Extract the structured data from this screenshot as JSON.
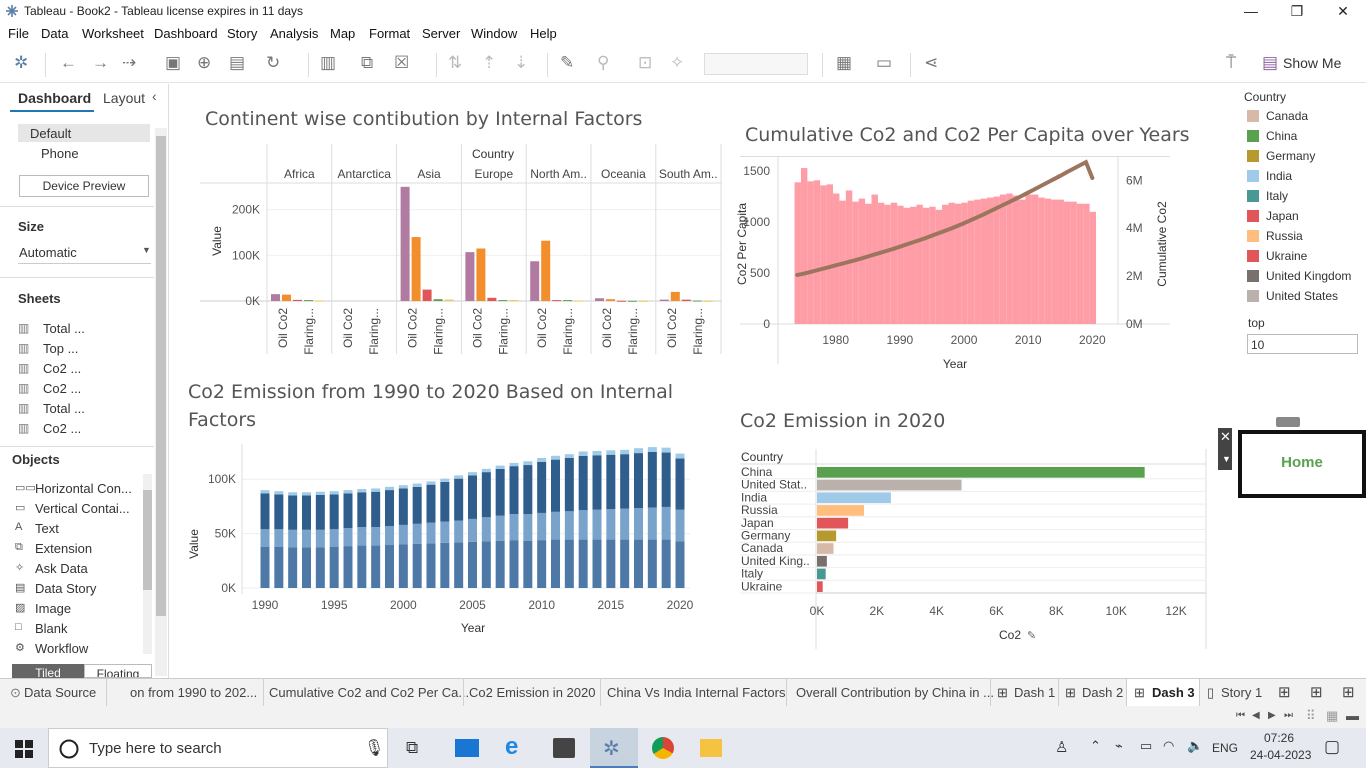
{
  "window": {
    "title": "Tableau - Book2 - Tableau license expires in 11 days"
  },
  "menu": [
    "File",
    "Data",
    "Worksheet",
    "Dashboard",
    "Story",
    "Analysis",
    "Map",
    "Format",
    "Server",
    "Window",
    "Help"
  ],
  "toolbar": {
    "show_me": "Show Me"
  },
  "left": {
    "tab_dashboard": "Dashboard",
    "tab_layout": "Layout",
    "device_default": "Default",
    "device_phone": "Phone",
    "device_preview": "Device Preview",
    "size_heading": "Size",
    "size_value": "Automatic",
    "sheets_heading": "Sheets",
    "sheets": [
      "Total ...",
      "Top ...",
      "Co2 ...",
      "Co2 ...",
      "Total ...",
      "Co2 ..."
    ],
    "objects_heading": "Objects",
    "objects": [
      "Horizontal Con...",
      "Vertical Contai...",
      "Text",
      "Extension",
      "Ask Data",
      "Data Story",
      "Image",
      "Blank",
      "Workflow"
    ],
    "tiled": "Tiled",
    "floating": "Floating"
  },
  "legend": {
    "title": "Country",
    "items": [
      {
        "name": "Canada",
        "color": "#d6b9a8"
      },
      {
        "name": "China",
        "color": "#59a14f"
      },
      {
        "name": "Germany",
        "color": "#b69a2e"
      },
      {
        "name": "India",
        "color": "#a0cbe8"
      },
      {
        "name": "Italy",
        "color": "#499894"
      },
      {
        "name": "Japan",
        "color": "#e15759"
      },
      {
        "name": "Russia",
        "color": "#ffbe7d"
      },
      {
        "name": "Ukraine",
        "color": "#e15759"
      },
      {
        "name": "United Kingdom",
        "color": "#79706e"
      },
      {
        "name": "United States",
        "color": "#bab0ac"
      }
    ],
    "top_label": "top",
    "top_value": "10"
  },
  "home_button": "Home",
  "chart1": {
    "title": "Continent wise contibution by Internal Factors",
    "header": "Country",
    "ylabel": "Value"
  },
  "chart2": {
    "title": "Cumulative Co2 and Co2 Per Capita over Years",
    "xlabel": "Year",
    "ylabel_left": "Co2 Per Capita",
    "ylabel_right": "Cumulative Co2"
  },
  "chart3": {
    "title_line1": "Co2 Emission from 1990 to 2020 Based on Internal",
    "title_line2": "Factors",
    "xlabel": "Year",
    "ylabel": "Value"
  },
  "chart4": {
    "title": "Co2 Emission in 2020",
    "header": "Country",
    "xlabel": "Co2"
  },
  "chart_data": [
    {
      "type": "bar",
      "title": "Continent wise contibution by Internal Factors",
      "ylabel": "Value",
      "ylim": [
        0,
        300000
      ],
      "yticks": [
        "0K",
        "100K",
        "200K"
      ],
      "columns": [
        "Africa",
        "Antarctica",
        "Asia",
        "Europe",
        "North Am..",
        "Oceania",
        "South Am.."
      ],
      "subcategories": [
        "Oil Co2",
        "Flaring..."
      ],
      "bars": [
        {
          "column": "Africa",
          "values": [
            {
              "v": 15000,
              "color": "#b07aa1"
            },
            {
              "v": 14000,
              "color": "#f28e2b"
            },
            {
              "v": 2500,
              "color": "#e15759"
            },
            {
              "v": 2000,
              "color": "#59a14f"
            },
            {
              "v": 1000,
              "color": "#edc948"
            }
          ]
        },
        {
          "column": "Antarctica",
          "values": []
        },
        {
          "column": "Asia",
          "values": [
            {
              "v": 250000,
              "color": "#b07aa1"
            },
            {
              "v": 140000,
              "color": "#f28e2b"
            },
            {
              "v": 25000,
              "color": "#e15759"
            },
            {
              "v": 4000,
              "color": "#59a14f"
            },
            {
              "v": 3000,
              "color": "#edc948"
            }
          ]
        },
        {
          "column": "Europe",
          "values": [
            {
              "v": 107000,
              "color": "#b07aa1"
            },
            {
              "v": 115000,
              "color": "#f28e2b"
            },
            {
              "v": 7000,
              "color": "#e15759"
            },
            {
              "v": 2000,
              "color": "#59a14f"
            },
            {
              "v": 2000,
              "color": "#edc948"
            }
          ]
        },
        {
          "column": "North Am..",
          "values": [
            {
              "v": 87000,
              "color": "#b07aa1"
            },
            {
              "v": 132000,
              "color": "#f28e2b"
            },
            {
              "v": 2000,
              "color": "#e15759"
            },
            {
              "v": 2000,
              "color": "#59a14f"
            },
            {
              "v": 1000,
              "color": "#edc948"
            }
          ]
        },
        {
          "column": "Oceania",
          "values": [
            {
              "v": 6000,
              "color": "#b07aa1"
            },
            {
              "v": 4000,
              "color": "#f28e2b"
            },
            {
              "v": 500,
              "color": "#e15759"
            },
            {
              "v": 500,
              "color": "#59a14f"
            },
            {
              "v": 500,
              "color": "#edc948"
            }
          ]
        },
        {
          "column": "South Am..",
          "values": [
            {
              "v": 3000,
              "color": "#b07aa1"
            },
            {
              "v": 20000,
              "color": "#f28e2b"
            },
            {
              "v": 3000,
              "color": "#e15759"
            },
            {
              "v": 1000,
              "color": "#59a14f"
            },
            {
              "v": 500,
              "color": "#edc948"
            }
          ]
        }
      ]
    },
    {
      "type": "bar",
      "title": "Cumulative Co2 and Co2 Per Capita over Years",
      "xlabel": "Year",
      "ylabel": "Co2 Per Capita",
      "y2label": "Cumulative Co2",
      "ylim": [
        0,
        1550
      ],
      "y2lim": [
        0,
        6600000
      ],
      "xticks": [
        1980,
        1990,
        2000,
        2010,
        2020
      ],
      "yticks": [
        0,
        500,
        1000,
        1500
      ],
      "y2ticks": [
        "0M",
        "2M",
        "4M",
        "6M"
      ],
      "bar_color": "#ff9da7",
      "line_color": "#9c755f",
      "years": [
        1974,
        1975,
        1976,
        1977,
        1978,
        1979,
        1980,
        1981,
        1982,
        1983,
        1984,
        1985,
        1986,
        1987,
        1988,
        1989,
        1990,
        1991,
        1992,
        1993,
        1994,
        1995,
        1996,
        1997,
        1998,
        1999,
        2000,
        2001,
        2002,
        2003,
        2004,
        2005,
        2006,
        2007,
        2008,
        2009,
        2010,
        2011,
        2012,
        2013,
        2014,
        2015,
        2016,
        2017,
        2018,
        2019,
        2020
      ],
      "co2_per_capita": [
        1390,
        1530,
        1400,
        1410,
        1360,
        1370,
        1280,
        1210,
        1310,
        1200,
        1230,
        1180,
        1270,
        1190,
        1170,
        1190,
        1160,
        1140,
        1150,
        1170,
        1140,
        1150,
        1120,
        1170,
        1190,
        1180,
        1190,
        1210,
        1220,
        1230,
        1240,
        1250,
        1270,
        1280,
        1260,
        1220,
        1270,
        1270,
        1240,
        1230,
        1220,
        1220,
        1200,
        1200,
        1180,
        1180,
        1100
      ],
      "cumulative_co2": [
        2050000,
        2100000,
        2170000,
        2240000,
        2310000,
        2380000,
        2450000,
        2520000,
        2590000,
        2660000,
        2740000,
        2820000,
        2900000,
        2980000,
        3060000,
        3140000,
        3230000,
        3320000,
        3410000,
        3500000,
        3590000,
        3690000,
        3790000,
        3890000,
        3990000,
        4100000,
        4210000,
        4330000,
        4450000,
        4570000,
        4700000,
        4830000,
        4960000,
        5090000,
        5220000,
        5350000,
        5490000,
        5630000,
        5770000,
        5910000,
        6050000,
        6190000,
        6340000,
        6480000,
        6620000,
        6760000,
        6100000
      ]
    },
    {
      "type": "bar",
      "stacked": true,
      "title": "Co2 Emission from 1990 to 2020 Based on Internal Factors",
      "xlabel": "Year",
      "ylabel": "Value",
      "ylim": [
        0,
        125000
      ],
      "xticks": [
        1990,
        1995,
        2000,
        2005,
        2010,
        2015,
        2020
      ],
      "yticks": [
        "0K",
        "50K",
        "100K"
      ],
      "years": [
        1990,
        1991,
        1992,
        1993,
        1994,
        1995,
        1996,
        1997,
        1998,
        1999,
        2000,
        2001,
        2002,
        2003,
        2004,
        2005,
        2006,
        2007,
        2008,
        2009,
        2010,
        2011,
        2012,
        2013,
        2014,
        2015,
        2016,
        2017,
        2018,
        2019,
        2020
      ],
      "series": [
        {
          "color": "#4e79a7",
          "values": [
            38000,
            38000,
            37500,
            37500,
            37500,
            38000,
            38500,
            39000,
            39000,
            39500,
            40000,
            40500,
            41000,
            41500,
            42000,
            42500,
            43000,
            43500,
            44000,
            43500,
            44000,
            44500,
            44500,
            44500,
            44500,
            44500,
            44500,
            44500,
            44500,
            44500,
            43000
          ]
        },
        {
          "color": "#7aa3cc",
          "values": [
            16000,
            16000,
            16000,
            16000,
            16000,
            16000,
            16500,
            17000,
            17000,
            17500,
            18000,
            18500,
            19000,
            19500,
            20000,
            21000,
            22000,
            23000,
            24000,
            24500,
            25000,
            25500,
            26000,
            27000,
            27500,
            28000,
            28500,
            29000,
            29500,
            30000,
            29000
          ]
        },
        {
          "color": "#2f5d8c",
          "values": [
            33000,
            32000,
            31500,
            31500,
            32000,
            32000,
            32000,
            32000,
            32500,
            33000,
            33500,
            34000,
            35000,
            36500,
            38500,
            40000,
            41500,
            43000,
            44000,
            45000,
            47000,
            48000,
            49000,
            50000,
            50000,
            50000,
            50000,
            50500,
            51000,
            50000,
            47000
          ]
        },
        {
          "color": "#a0cbe8",
          "values": [
            3000,
            3000,
            3000,
            3000,
            3000,
            3000,
            3000,
            3000,
            3000,
            3000,
            3000,
            3000,
            3000,
            3000,
            3000,
            3000,
            3000,
            3000,
            3000,
            3500,
            3500,
            3500,
            3500,
            4000,
            4000,
            4000,
            4000,
            4500,
            4500,
            4500,
            4500
          ]
        }
      ]
    },
    {
      "type": "bar",
      "orientation": "horizontal",
      "title": "Co2 Emission in 2020",
      "xlabel": "Co2",
      "xlim": [
        0,
        13000
      ],
      "xticks": [
        "0K",
        "2K",
        "4K",
        "6K",
        "8K",
        "10K",
        "12K"
      ],
      "categories": [
        "China",
        "United Stat..",
        "India",
        "Russia",
        "Japan",
        "Germany",
        "Canada",
        "United King..",
        "Italy",
        "Ukraine"
      ],
      "values": [
        10950,
        4830,
        2470,
        1570,
        1040,
        640,
        550,
        330,
        290,
        190
      ],
      "colors": [
        "#59a14f",
        "#bab0ac",
        "#a0cbe8",
        "#ffbe7d",
        "#e15759",
        "#b69a2e",
        "#d6b9a8",
        "#79706e",
        "#499894",
        "#e15759"
      ]
    }
  ],
  "tabs": {
    "data_source": "Data Source",
    "items": [
      "on from 1990 to 202...",
      "Cumulative Co2 and Co2 Per Ca...",
      "Co2 Emission in 2020",
      "China Vs India Internal Factors",
      "Overall Contribution by China in ...",
      "Dash 1",
      "Dash 2",
      "Dash 3",
      "Story 1"
    ]
  },
  "taskbar": {
    "search_placeholder": "Type here to search",
    "lang": "ENG",
    "time": "07:26",
    "date": "24-04-2023"
  }
}
